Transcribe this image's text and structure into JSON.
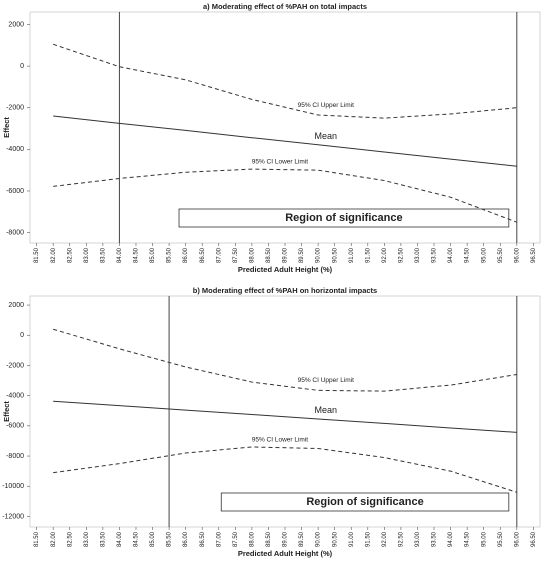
{
  "chart_data": [
    {
      "type": "line",
      "title": "a) Moderating effect of %PAH on total impacts",
      "x_label": "Predicted Adult Height (%)",
      "y_label": "Effect",
      "x": [
        82,
        84,
        86,
        88,
        90,
        92,
        94,
        96
      ],
      "series": [
        {
          "name": "95% CI Upper Limit",
          "color": "#333333",
          "linestyle": "dashed",
          "values": [
            1050,
            -30,
            -660,
            -1600,
            -2350,
            -2500,
            -2300,
            -2000
          ]
        },
        {
          "name": "Mean",
          "color": "#333333",
          "linestyle": "solid",
          "values": [
            -2400,
            -2750,
            -3090,
            -3440,
            -3780,
            -4130,
            -4470,
            -4810
          ]
        },
        {
          "name": "95% CI Lower Limit",
          "color": "#333333",
          "linestyle": "dashed",
          "values": [
            -5780,
            -5400,
            -5100,
            -4950,
            -5000,
            -5500,
            -6300,
            -7500
          ]
        }
      ],
      "vlines": [
        84,
        96
      ],
      "region_label": "Region of significance",
      "xlim": [
        81.3,
        96.7
      ],
      "ylim": [
        -8500,
        2600
      ],
      "xticks": [
        {
          "value": 81.5,
          "label": "81.50"
        },
        {
          "value": 82,
          "label": "82.00"
        },
        {
          "value": 82.5,
          "label": "82.50"
        },
        {
          "value": 83,
          "label": "83.00"
        },
        {
          "value": 83.5,
          "label": "83.50"
        },
        {
          "value": 84,
          "label": "84.00"
        },
        {
          "value": 84.5,
          "label": "84.50"
        },
        {
          "value": 85,
          "label": "85.00"
        },
        {
          "value": 85.5,
          "label": "85.50"
        },
        {
          "value": 86,
          "label": "86.00"
        },
        {
          "value": 86.5,
          "label": "86.50"
        },
        {
          "value": 87,
          "label": "87.00"
        },
        {
          "value": 87.5,
          "label": "87.50"
        },
        {
          "value": 88,
          "label": "88.00"
        },
        {
          "value": 88.5,
          "label": "88.50"
        },
        {
          "value": 89,
          "label": "89.00"
        },
        {
          "value": 89.5,
          "label": "89.50"
        },
        {
          "value": 90,
          "label": "90.00"
        },
        {
          "value": 90.5,
          "label": "90.50"
        },
        {
          "value": 91,
          "label": "91.00"
        },
        {
          "value": 91.5,
          "label": "91.50"
        },
        {
          "value": 92,
          "label": "92.00"
        },
        {
          "value": 92.5,
          "label": "92.50"
        },
        {
          "value": 93,
          "label": "93.00"
        },
        {
          "value": 93.5,
          "label": "93.50"
        },
        {
          "value": 94,
          "label": "94.00"
        },
        {
          "value": 94.5,
          "label": "94.50"
        },
        {
          "value": 95,
          "label": "95.00"
        },
        {
          "value": 95.5,
          "label": "95.50"
        },
        {
          "value": 96,
          "label": "96.00"
        },
        {
          "value": 96.5,
          "label": "96.50"
        }
      ],
      "yticks": [
        2000,
        0,
        -2000,
        -4000,
        -6000,
        -8000
      ]
    },
    {
      "type": "line",
      "title": "b) Moderating effect of %PAH on horizontal impacts",
      "x_label": "Predicted Adult Height (%)",
      "y_label": "Effect",
      "x": [
        82,
        84,
        86,
        88,
        90,
        92,
        94,
        96
      ],
      "series": [
        {
          "name": "95% CI Upper Limit",
          "color": "#333333",
          "linestyle": "dashed",
          "values": [
            400,
            -900,
            -2100,
            -3100,
            -3650,
            -3700,
            -3300,
            -2600
          ]
        },
        {
          "name": "Mean",
          "color": "#333333",
          "linestyle": "solid",
          "values": [
            -4370,
            -4660,
            -4960,
            -5250,
            -5550,
            -5840,
            -6140,
            -6430
          ]
        },
        {
          "name": "95% CI Lower Limit",
          "color": "#333333",
          "linestyle": "dashed",
          "values": [
            -9100,
            -8500,
            -7800,
            -7400,
            -7500,
            -8100,
            -9000,
            -10400
          ]
        }
      ],
      "vlines": [
        85.5,
        96
      ],
      "region_label": "Region of significance",
      "xlim": [
        81.3,
        96.7
      ],
      "ylim": [
        -12700,
        2600
      ],
      "xticks": [
        {
          "value": 81.5,
          "label": "81.50"
        },
        {
          "value": 82,
          "label": "82.00"
        },
        {
          "value": 82.5,
          "label": "82.50"
        },
        {
          "value": 83,
          "label": "83.00"
        },
        {
          "value": 83.5,
          "label": "83.50"
        },
        {
          "value": 84,
          "label": "84.00"
        },
        {
          "value": 84.5,
          "label": "84.50"
        },
        {
          "value": 85,
          "label": "85.00"
        },
        {
          "value": 85.5,
          "label": "85.50"
        },
        {
          "value": 86,
          "label": "86.00"
        },
        {
          "value": 86.5,
          "label": "86.50"
        },
        {
          "value": 87,
          "label": "87.00"
        },
        {
          "value": 87.5,
          "label": "87.50"
        },
        {
          "value": 88,
          "label": "88.00"
        },
        {
          "value": 88.5,
          "label": "88.50"
        },
        {
          "value": 89,
          "label": "89.00"
        },
        {
          "value": 89.5,
          "label": "89.50"
        },
        {
          "value": 90,
          "label": "90.00"
        },
        {
          "value": 90.5,
          "label": "90.50"
        },
        {
          "value": 91,
          "label": "91.00"
        },
        {
          "value": 91.5,
          "label": "91.50"
        },
        {
          "value": 92,
          "label": "92.00"
        },
        {
          "value": 92.5,
          "label": "92.50"
        },
        {
          "value": 93,
          "label": "93.00"
        },
        {
          "value": 93.5,
          "label": "93.50"
        },
        {
          "value": 94,
          "label": "94.00"
        },
        {
          "value": 94.5,
          "label": "94.50"
        },
        {
          "value": 95,
          "label": "95.00"
        },
        {
          "value": 95.5,
          "label": "95.50"
        },
        {
          "value": 96,
          "label": "96.00"
        },
        {
          "value": 96.5,
          "label": "96.50"
        }
      ],
      "yticks": [
        2000,
        0,
        -2000,
        -4000,
        -6000,
        -8000,
        -10000,
        -12000
      ]
    }
  ]
}
